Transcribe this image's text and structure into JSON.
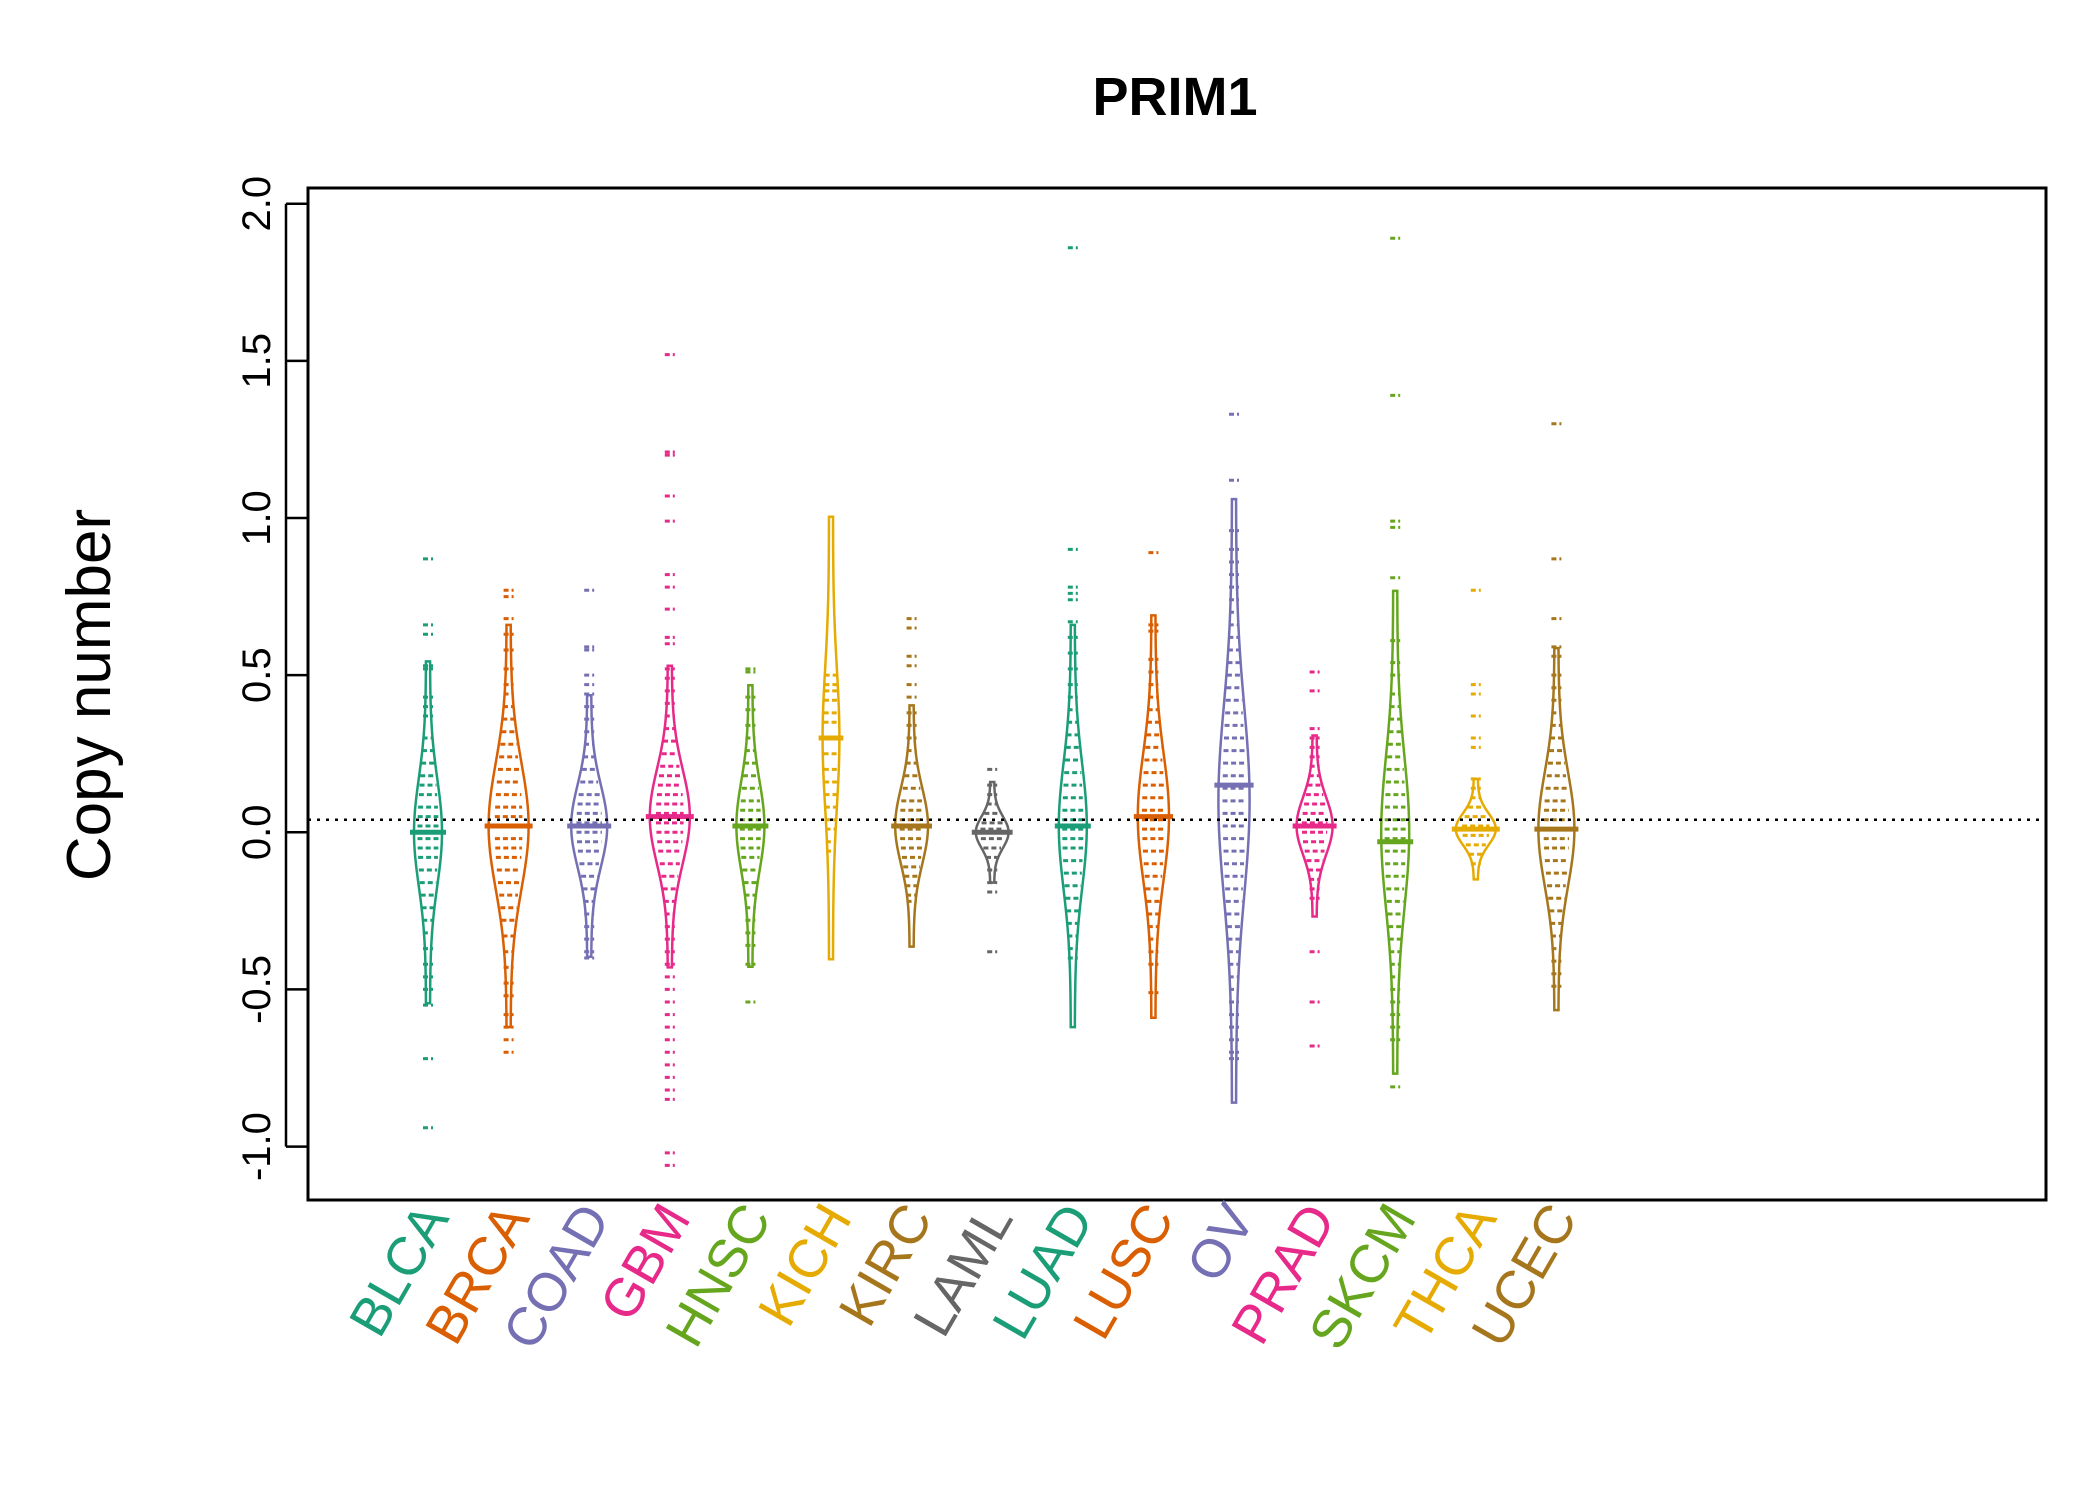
{
  "chart_data": {
    "type": "beanplot",
    "title": "PRIM1",
    "xlabel": "",
    "ylabel": "Copy number",
    "ylim": [
      -1.17,
      2.05
    ],
    "yticks": [
      "-1.0",
      "-0.5",
      "0.0",
      "0.5",
      "1.0",
      "1.5",
      "2.0"
    ],
    "reference_line": 0.04,
    "series": [
      {
        "name": "BLCA",
        "color": "#1b9e77",
        "center": 0.0,
        "median": 0.0,
        "width": 0.3,
        "sd": 0.17,
        "points": [
          0.87,
          0.66,
          0.63,
          0.53,
          0.52,
          0.43,
          0.4,
          0.37,
          0.3,
          0.26,
          0.22,
          0.18,
          0.15,
          0.12,
          0.08,
          0.05,
          0.02,
          -0.02,
          -0.05,
          -0.08,
          -0.12,
          -0.16,
          -0.2,
          -0.24,
          -0.28,
          -0.32,
          -0.37,
          -0.42,
          -0.46,
          -0.5,
          -0.55,
          -0.72,
          -0.94
        ]
      },
      {
        "name": "BRCA",
        "color": "#d95f02",
        "center": 0.02,
        "median": 0.02,
        "width": 0.45,
        "sd": 0.2,
        "points": [
          0.77,
          0.75,
          0.68,
          0.63,
          0.58,
          0.52,
          0.47,
          0.44,
          0.4,
          0.36,
          0.32,
          0.28,
          0.24,
          0.2,
          0.16,
          0.12,
          0.08,
          0.05,
          0.02,
          -0.02,
          -0.05,
          -0.08,
          -0.12,
          -0.16,
          -0.2,
          -0.24,
          -0.28,
          -0.33,
          -0.38,
          -0.43,
          -0.48,
          -0.52,
          -0.58,
          -0.62,
          -0.66,
          -0.7
        ]
      },
      {
        "name": "COAD",
        "color": "#7570b3",
        "center": 0.02,
        "median": 0.02,
        "width": 0.4,
        "sd": 0.13,
        "points": [
          0.77,
          0.59,
          0.58,
          0.5,
          0.47,
          0.44,
          0.4,
          0.36,
          0.32,
          0.28,
          0.24,
          0.2,
          0.16,
          0.12,
          0.09,
          0.06,
          0.03,
          0.0,
          -0.03,
          -0.06,
          -0.1,
          -0.14,
          -0.18,
          -0.22,
          -0.26,
          -0.3,
          -0.34,
          -0.38,
          -0.4
        ]
      },
      {
        "name": "GBM",
        "color": "#e7298a",
        "center": 0.05,
        "median": 0.05,
        "width": 0.45,
        "sd": 0.15,
        "points": [
          1.52,
          1.21,
          1.2,
          1.07,
          0.99,
          0.82,
          0.78,
          0.71,
          0.62,
          0.6,
          0.52,
          0.49,
          0.45,
          0.41,
          0.37,
          0.33,
          0.29,
          0.25,
          0.21,
          0.18,
          0.15,
          0.12,
          0.09,
          0.06,
          0.03,
          0.0,
          -0.03,
          -0.06,
          -0.1,
          -0.14,
          -0.18,
          -0.22,
          -0.26,
          -0.3,
          -0.34,
          -0.38,
          -0.42,
          -0.46,
          -0.5,
          -0.54,
          -0.58,
          -0.62,
          -0.66,
          -0.7,
          -0.74,
          -0.78,
          -0.82,
          -0.85,
          -1.02,
          -1.06
        ]
      },
      {
        "name": "HNSC",
        "color": "#66a61e",
        "center": 0.02,
        "median": 0.02,
        "width": 0.3,
        "sd": 0.14,
        "points": [
          0.52,
          0.51,
          0.43,
          0.39,
          0.34,
          0.3,
          0.26,
          0.22,
          0.18,
          0.14,
          0.1,
          0.07,
          0.04,
          0.01,
          -0.02,
          -0.05,
          -0.08,
          -0.12,
          -0.16,
          -0.2,
          -0.24,
          -0.28,
          -0.32,
          -0.36,
          -0.42,
          -0.54
        ]
      },
      {
        "name": "KICH",
        "color": "#e6ab02",
        "center": 0.3,
        "median": 0.3,
        "width": 0.16,
        "sd": 0.22,
        "points": [
          0.5,
          0.47,
          0.45,
          0.42,
          0.38,
          0.35,
          0.3,
          0.25,
          0.2,
          0.16,
          0.12,
          0.08,
          0.04,
          0.01,
          -0.03,
          -0.06
        ]
      },
      {
        "name": "KIRC",
        "color": "#a6761d",
        "center": 0.02,
        "median": 0.02,
        "width": 0.36,
        "sd": 0.12,
        "points": [
          0.68,
          0.65,
          0.56,
          0.53,
          0.47,
          0.43,
          0.38,
          0.34,
          0.3,
          0.26,
          0.22,
          0.18,
          0.14,
          0.1,
          0.07,
          0.04,
          0.01,
          -0.02,
          -0.05,
          -0.08,
          -0.11,
          -0.14,
          -0.17,
          -0.2,
          -0.22
        ]
      },
      {
        "name": "LAML",
        "color": "#666666",
        "center": 0.0,
        "median": 0.0,
        "width": 0.36,
        "sd": 0.05,
        "points": [
          0.2,
          0.15,
          0.12,
          0.09,
          0.06,
          0.03,
          0.01,
          -0.02,
          -0.05,
          -0.08,
          -0.12,
          -0.16,
          -0.19,
          -0.38
        ]
      },
      {
        "name": "LUAD",
        "color": "#1b9e77",
        "center": 0.02,
        "median": 0.02,
        "width": 0.3,
        "sd": 0.2,
        "points": [
          1.86,
          0.9,
          0.78,
          0.76,
          0.74,
          0.67,
          0.62,
          0.57,
          0.52,
          0.47,
          0.43,
          0.39,
          0.35,
          0.31,
          0.27,
          0.23,
          0.19,
          0.15,
          0.11,
          0.07,
          0.04,
          0.01,
          -0.02,
          -0.05,
          -0.09,
          -0.13,
          -0.17,
          -0.21,
          -0.25,
          -0.29,
          -0.33,
          -0.37,
          -0.4
        ]
      },
      {
        "name": "LUSC",
        "color": "#d95f02",
        "center": 0.05,
        "median": 0.05,
        "width": 0.34,
        "sd": 0.2,
        "points": [
          0.89,
          0.66,
          0.64,
          0.55,
          0.51,
          0.47,
          0.43,
          0.39,
          0.35,
          0.31,
          0.27,
          0.23,
          0.19,
          0.15,
          0.11,
          0.07,
          0.04,
          0.01,
          -0.02,
          -0.06,
          -0.1,
          -0.14,
          -0.18,
          -0.22,
          -0.26,
          -0.3,
          -0.34,
          -0.38,
          -0.42,
          -0.51
        ]
      },
      {
        "name": "OV",
        "color": "#7570b3",
        "center": 0.1,
        "median": 0.15,
        "width": 0.34,
        "sd": 0.3,
        "points": [
          1.33,
          1.12,
          0.96,
          0.9,
          0.86,
          0.82,
          0.78,
          0.74,
          0.7,
          0.66,
          0.62,
          0.58,
          0.54,
          0.5,
          0.46,
          0.42,
          0.38,
          0.34,
          0.3,
          0.26,
          0.22,
          0.18,
          0.14,
          0.1,
          0.06,
          0.02,
          -0.02,
          -0.06,
          -0.1,
          -0.14,
          -0.18,
          -0.22,
          -0.26,
          -0.3,
          -0.34,
          -0.38,
          -0.42,
          -0.46,
          -0.5,
          -0.54,
          -0.58,
          -0.62,
          -0.66,
          -0.7,
          -0.72
        ]
      },
      {
        "name": "PRAD",
        "color": "#e7298a",
        "center": 0.02,
        "median": 0.02,
        "width": 0.4,
        "sd": 0.09,
        "points": [
          0.51,
          0.45,
          0.33,
          0.3,
          0.27,
          0.24,
          0.21,
          0.18,
          0.15,
          0.12,
          0.09,
          0.06,
          0.03,
          0.0,
          -0.03,
          -0.06,
          -0.09,
          -0.12,
          -0.15,
          -0.18,
          -0.21,
          -0.38,
          -0.54,
          -0.68
        ]
      },
      {
        "name": "SKCM",
        "color": "#66a61e",
        "center": 0.0,
        "median": -0.03,
        "width": 0.3,
        "sd": 0.24,
        "points": [
          1.89,
          1.39,
          0.99,
          0.97,
          0.81,
          0.61,
          0.54,
          0.5,
          0.44,
          0.4,
          0.36,
          0.32,
          0.28,
          0.24,
          0.2,
          0.16,
          0.12,
          0.08,
          0.04,
          0.01,
          -0.02,
          -0.06,
          -0.1,
          -0.14,
          -0.18,
          -0.22,
          -0.26,
          -0.3,
          -0.34,
          -0.38,
          -0.42,
          -0.46,
          -0.5,
          -0.54,
          -0.58,
          -0.62,
          -0.66,
          -0.81
        ]
      },
      {
        "name": "THCA",
        "color": "#e6ab02",
        "center": 0.01,
        "median": 0.01,
        "width": 0.45,
        "sd": 0.05,
        "points": [
          0.77,
          0.47,
          0.44,
          0.37,
          0.3,
          0.27,
          0.17,
          0.14,
          0.11,
          0.08,
          0.05,
          0.02,
          -0.01,
          -0.04,
          -0.07,
          -0.1
        ]
      },
      {
        "name": "UCEC",
        "color": "#a6761d",
        "center": 0.01,
        "median": 0.01,
        "width": 0.4,
        "sd": 0.18,
        "points": [
          1.3,
          0.87,
          0.68,
          0.59,
          0.56,
          0.5,
          0.46,
          0.42,
          0.38,
          0.34,
          0.3,
          0.26,
          0.22,
          0.18,
          0.14,
          0.1,
          0.07,
          0.04,
          0.01,
          -0.02,
          -0.05,
          -0.09,
          -0.13,
          -0.17,
          -0.21,
          -0.25,
          -0.29,
          -0.33,
          -0.37,
          -0.41,
          -0.45,
          -0.49
        ]
      }
    ]
  }
}
